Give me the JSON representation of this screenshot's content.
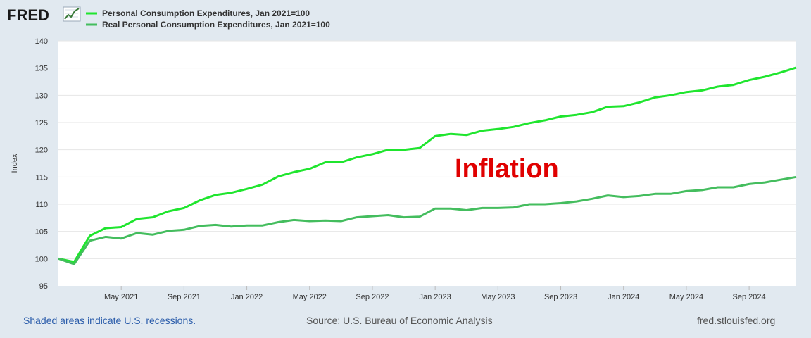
{
  "logo": {
    "text": "FRED",
    "icon": "chart-line-icon"
  },
  "chart_data": {
    "type": "line",
    "y_axis_label": "Index",
    "ylim": [
      95,
      140
    ],
    "y_ticks": [
      95,
      100,
      105,
      110,
      115,
      120,
      125,
      130,
      135,
      140
    ],
    "x_tick_labels": [
      "May 2021",
      "Sep 2021",
      "Jan 2022",
      "May 2022",
      "Sep 2022",
      "Jan 2023",
      "May 2023",
      "Sep 2023",
      "Jan 2024",
      "May 2024",
      "Sep 2024"
    ],
    "x_tick_month_index": [
      4,
      8,
      12,
      16,
      20,
      24,
      28,
      32,
      36,
      40,
      44
    ],
    "month_count": 48,
    "annotation": "Inflation",
    "series": [
      {
        "name": "Personal Consumption Expenditures, Jan 2021=100",
        "color": "#1fe52e",
        "values": [
          100.0,
          99.4,
          104.2,
          105.6,
          105.8,
          107.3,
          107.6,
          108.7,
          109.3,
          110.7,
          111.7,
          112.1,
          112.8,
          113.6,
          115.1,
          115.9,
          116.5,
          117.7,
          117.7,
          118.6,
          119.2,
          120.0,
          120.0,
          120.3,
          122.5,
          122.9,
          122.7,
          123.5,
          123.8,
          124.2,
          124.9,
          125.4,
          126.1,
          126.4,
          126.9,
          127.9,
          128.0,
          128.7,
          129.6,
          130.0,
          130.6,
          130.9,
          131.6,
          131.9,
          132.8,
          133.4,
          134.2,
          135.1
        ]
      },
      {
        "name": "Real Personal Consumption Expenditures, Jan 2021=100",
        "color": "#44bd5e",
        "values": [
          100.0,
          99.0,
          103.3,
          104.0,
          103.7,
          104.7,
          104.4,
          105.1,
          105.3,
          106.0,
          106.2,
          105.9,
          106.1,
          106.1,
          106.7,
          107.1,
          106.9,
          107.0,
          106.9,
          107.6,
          107.8,
          108.0,
          107.6,
          107.7,
          109.2,
          109.2,
          108.9,
          109.3,
          109.3,
          109.4,
          110.0,
          110.0,
          110.2,
          110.5,
          111.0,
          111.6,
          111.3,
          111.5,
          111.9,
          111.9,
          112.4,
          112.6,
          113.1,
          113.1,
          113.7,
          114.0,
          114.5,
          115.0
        ]
      }
    ]
  },
  "footer": {
    "recessions": "Shaded areas indicate U.S. recessions.",
    "source": "Source: U.S. Bureau of Economic Analysis",
    "site": "fred.stlouisfed.org"
  }
}
